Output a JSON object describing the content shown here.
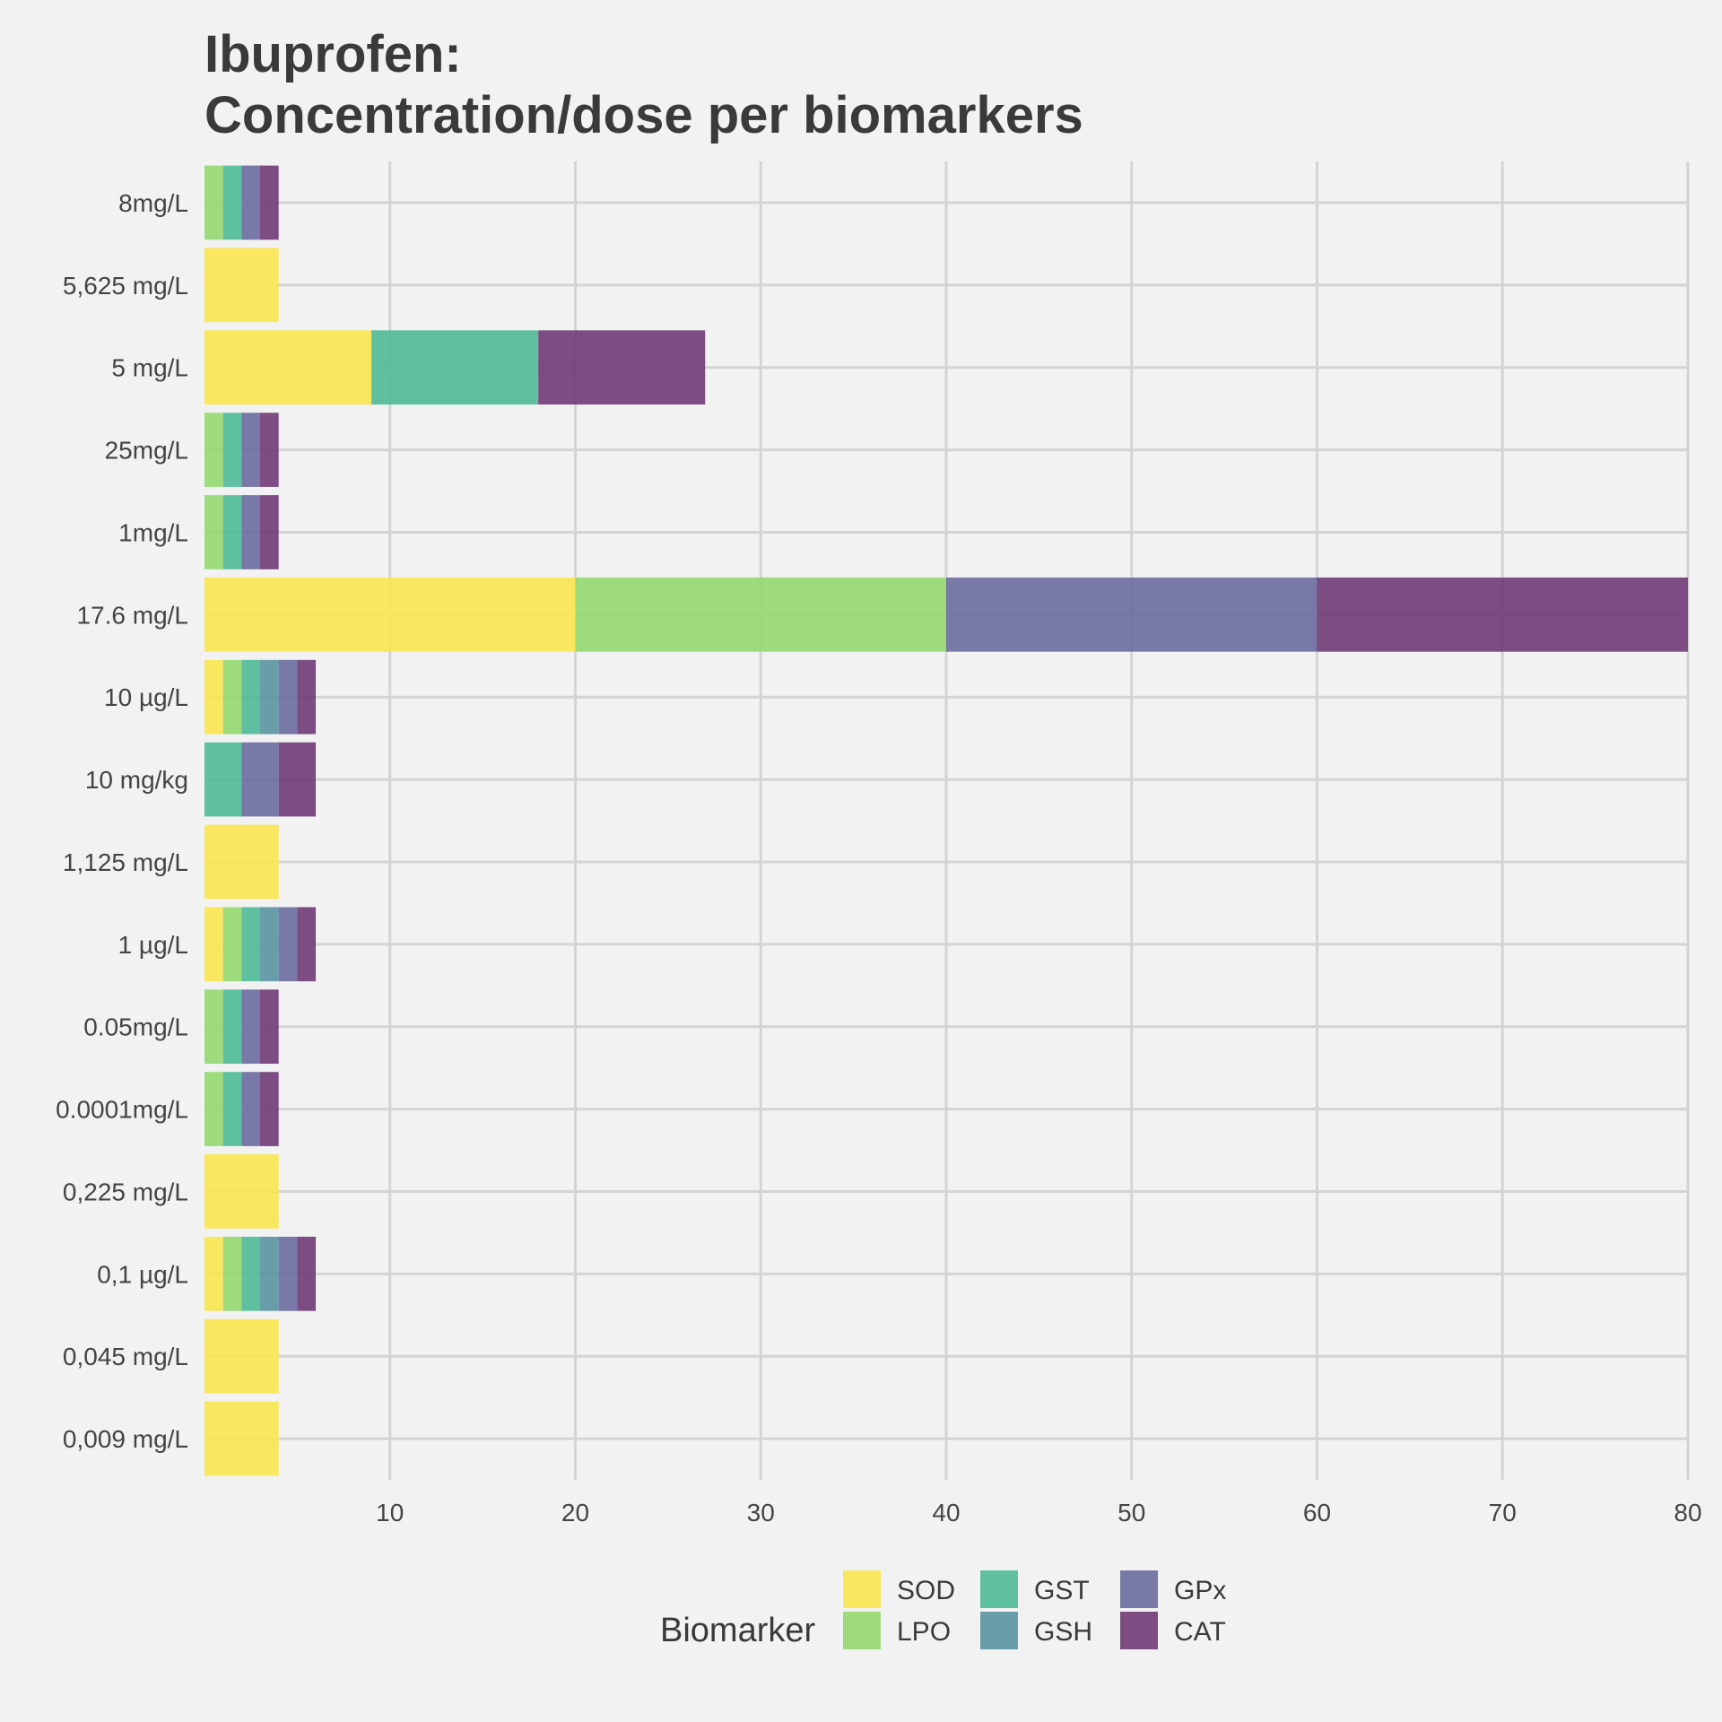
{
  "chart_data": {
    "type": "bar",
    "orientation": "horizontal",
    "stacked": true,
    "title": "Ibuprofen:",
    "subtitle": "Concentration/dose per biomarkers",
    "xlabel": "",
    "ylabel": "",
    "xlim": [
      0,
      80
    ],
    "xticks": [
      10,
      20,
      30,
      40,
      50,
      60,
      70,
      80
    ],
    "grid": true,
    "legend": {
      "title": "Biomarker",
      "placement": "bottom"
    },
    "categories": [
      "8mg/L",
      "5,625 mg/L",
      "5 mg/L",
      "25mg/L",
      "1mg/L",
      "17.6 mg/L",
      "10 µg/L",
      "10 mg/kg",
      "1,125 mg/L",
      "1 µg/L",
      "0.05mg/L",
      "0.0001mg/L",
      "0,225 mg/L",
      "0,1 µg/L",
      "0,045 mg/L",
      "0,009 mg/L"
    ],
    "series": [
      {
        "name": "SOD",
        "color": "#f9e650",
        "values": [
          0,
          4,
          9,
          0,
          0,
          20,
          1,
          0,
          4,
          1,
          0,
          0,
          4,
          1,
          4,
          4
        ]
      },
      {
        "name": "LPO",
        "color": "#94d870",
        "values": [
          1,
          0,
          0,
          1,
          1,
          20,
          1,
          0,
          0,
          1,
          1,
          1,
          0,
          1,
          0,
          0
        ]
      },
      {
        "name": "GST",
        "color": "#4fba98",
        "values": [
          1,
          0,
          9,
          1,
          1,
          0,
          1,
          2,
          0,
          1,
          1,
          1,
          0,
          1,
          0,
          0
        ]
      },
      {
        "name": "GSH",
        "color": "#5a93a2",
        "values": [
          0,
          0,
          0,
          0,
          0,
          0,
          1,
          0,
          0,
          1,
          0,
          0,
          0,
          1,
          0,
          0
        ]
      },
      {
        "name": "GPx",
        "color": "#6a6c9e",
        "values": [
          1,
          0,
          0,
          1,
          1,
          20,
          1,
          2,
          0,
          1,
          1,
          1,
          0,
          1,
          0,
          0
        ]
      },
      {
        "name": "CAT",
        "color": "#6f3a75",
        "values": [
          1,
          0,
          9,
          1,
          1,
          20,
          1,
          2,
          0,
          1,
          1,
          1,
          0,
          1,
          0,
          0
        ]
      }
    ]
  }
}
